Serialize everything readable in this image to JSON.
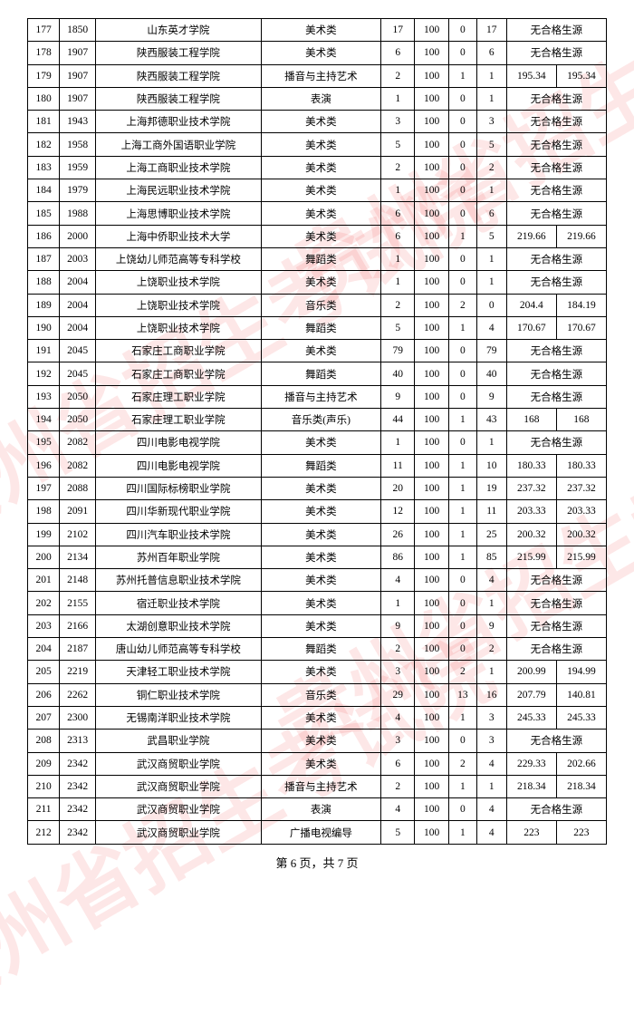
{
  "watermark_text": "贵州省招生考试院",
  "pager": "第 6 页，共 7 页",
  "columns": [
    "idx",
    "code",
    "school",
    "category",
    "n1",
    "n2",
    "n3",
    "n4",
    "s1",
    "s2"
  ],
  "no_source_text": "无合格生源",
  "rows": [
    {
      "idx": "177",
      "code": "1850",
      "school": "山东英才学院",
      "category": "美术类",
      "n1": "17",
      "n2": "100",
      "n3": "0",
      "n4": "17",
      "s1": "",
      "s2": "",
      "merged": true
    },
    {
      "idx": "178",
      "code": "1907",
      "school": "陕西服装工程学院",
      "category": "美术类",
      "n1": "6",
      "n2": "100",
      "n3": "0",
      "n4": "6",
      "s1": "",
      "s2": "",
      "merged": true
    },
    {
      "idx": "179",
      "code": "1907",
      "school": "陕西服装工程学院",
      "category": "播音与主持艺术",
      "n1": "2",
      "n2": "100",
      "n3": "1",
      "n4": "1",
      "s1": "195.34",
      "s2": "195.34",
      "merged": false
    },
    {
      "idx": "180",
      "code": "1907",
      "school": "陕西服装工程学院",
      "category": "表演",
      "n1": "1",
      "n2": "100",
      "n3": "0",
      "n4": "1",
      "s1": "",
      "s2": "",
      "merged": true
    },
    {
      "idx": "181",
      "code": "1943",
      "school": "上海邦德职业技术学院",
      "category": "美术类",
      "n1": "3",
      "n2": "100",
      "n3": "0",
      "n4": "3",
      "s1": "",
      "s2": "",
      "merged": true
    },
    {
      "idx": "182",
      "code": "1958",
      "school": "上海工商外国语职业学院",
      "category": "美术类",
      "n1": "5",
      "n2": "100",
      "n3": "0",
      "n4": "5",
      "s1": "",
      "s2": "",
      "merged": true
    },
    {
      "idx": "183",
      "code": "1959",
      "school": "上海工商职业技术学院",
      "category": "美术类",
      "n1": "2",
      "n2": "100",
      "n3": "0",
      "n4": "2",
      "s1": "",
      "s2": "",
      "merged": true
    },
    {
      "idx": "184",
      "code": "1979",
      "school": "上海民远职业技术学院",
      "category": "美术类",
      "n1": "1",
      "n2": "100",
      "n3": "0",
      "n4": "1",
      "s1": "",
      "s2": "",
      "merged": true
    },
    {
      "idx": "185",
      "code": "1988",
      "school": "上海思博职业技术学院",
      "category": "美术类",
      "n1": "6",
      "n2": "100",
      "n3": "0",
      "n4": "6",
      "s1": "",
      "s2": "",
      "merged": true
    },
    {
      "idx": "186",
      "code": "2000",
      "school": "上海中侨职业技术大学",
      "category": "美术类",
      "n1": "6",
      "n2": "100",
      "n3": "1",
      "n4": "5",
      "s1": "219.66",
      "s2": "219.66",
      "merged": false
    },
    {
      "idx": "187",
      "code": "2003",
      "school": "上饶幼儿师范高等专科学校",
      "category": "舞蹈类",
      "n1": "1",
      "n2": "100",
      "n3": "0",
      "n4": "1",
      "s1": "",
      "s2": "",
      "merged": true
    },
    {
      "idx": "188",
      "code": "2004",
      "school": "上饶职业技术学院",
      "category": "美术类",
      "n1": "1",
      "n2": "100",
      "n3": "0",
      "n4": "1",
      "s1": "",
      "s2": "",
      "merged": true
    },
    {
      "idx": "189",
      "code": "2004",
      "school": "上饶职业技术学院",
      "category": "音乐类",
      "n1": "2",
      "n2": "100",
      "n3": "2",
      "n4": "0",
      "s1": "204.4",
      "s2": "184.19",
      "merged": false
    },
    {
      "idx": "190",
      "code": "2004",
      "school": "上饶职业技术学院",
      "category": "舞蹈类",
      "n1": "5",
      "n2": "100",
      "n3": "1",
      "n4": "4",
      "s1": "170.67",
      "s2": "170.67",
      "merged": false
    },
    {
      "idx": "191",
      "code": "2045",
      "school": "石家庄工商职业学院",
      "category": "美术类",
      "n1": "79",
      "n2": "100",
      "n3": "0",
      "n4": "79",
      "s1": "",
      "s2": "",
      "merged": true
    },
    {
      "idx": "192",
      "code": "2045",
      "school": "石家庄工商职业学院",
      "category": "舞蹈类",
      "n1": "40",
      "n2": "100",
      "n3": "0",
      "n4": "40",
      "s1": "",
      "s2": "",
      "merged": true
    },
    {
      "idx": "193",
      "code": "2050",
      "school": "石家庄理工职业学院",
      "category": "播音与主持艺术",
      "n1": "9",
      "n2": "100",
      "n3": "0",
      "n4": "9",
      "s1": "",
      "s2": "",
      "merged": true
    },
    {
      "idx": "194",
      "code": "2050",
      "school": "石家庄理工职业学院",
      "category": "音乐类(声乐)",
      "n1": "44",
      "n2": "100",
      "n3": "1",
      "n4": "43",
      "s1": "168",
      "s2": "168",
      "merged": false
    },
    {
      "idx": "195",
      "code": "2082",
      "school": "四川电影电视学院",
      "category": "美术类",
      "n1": "1",
      "n2": "100",
      "n3": "0",
      "n4": "1",
      "s1": "",
      "s2": "",
      "merged": true
    },
    {
      "idx": "196",
      "code": "2082",
      "school": "四川电影电视学院",
      "category": "舞蹈类",
      "n1": "11",
      "n2": "100",
      "n3": "1",
      "n4": "10",
      "s1": "180.33",
      "s2": "180.33",
      "merged": false
    },
    {
      "idx": "197",
      "code": "2088",
      "school": "四川国际标榜职业学院",
      "category": "美术类",
      "n1": "20",
      "n2": "100",
      "n3": "1",
      "n4": "19",
      "s1": "237.32",
      "s2": "237.32",
      "merged": false
    },
    {
      "idx": "198",
      "code": "2091",
      "school": "四川华新现代职业学院",
      "category": "美术类",
      "n1": "12",
      "n2": "100",
      "n3": "1",
      "n4": "11",
      "s1": "203.33",
      "s2": "203.33",
      "merged": false
    },
    {
      "idx": "199",
      "code": "2102",
      "school": "四川汽车职业技术学院",
      "category": "美术类",
      "n1": "26",
      "n2": "100",
      "n3": "1",
      "n4": "25",
      "s1": "200.32",
      "s2": "200.32",
      "merged": false
    },
    {
      "idx": "200",
      "code": "2134",
      "school": "苏州百年职业学院",
      "category": "美术类",
      "n1": "86",
      "n2": "100",
      "n3": "1",
      "n4": "85",
      "s1": "215.99",
      "s2": "215.99",
      "merged": false
    },
    {
      "idx": "201",
      "code": "2148",
      "school": "苏州托普信息职业技术学院",
      "category": "美术类",
      "n1": "4",
      "n2": "100",
      "n3": "0",
      "n4": "4",
      "s1": "",
      "s2": "",
      "merged": true
    },
    {
      "idx": "202",
      "code": "2155",
      "school": "宿迁职业技术学院",
      "category": "美术类",
      "n1": "1",
      "n2": "100",
      "n3": "0",
      "n4": "1",
      "s1": "",
      "s2": "",
      "merged": true
    },
    {
      "idx": "203",
      "code": "2166",
      "school": "太湖创意职业技术学院",
      "category": "美术类",
      "n1": "9",
      "n2": "100",
      "n3": "0",
      "n4": "9",
      "s1": "",
      "s2": "",
      "merged": true
    },
    {
      "idx": "204",
      "code": "2187",
      "school": "唐山幼儿师范高等专科学校",
      "category": "舞蹈类",
      "n1": "2",
      "n2": "100",
      "n3": "0",
      "n4": "2",
      "s1": "",
      "s2": "",
      "merged": true
    },
    {
      "idx": "205",
      "code": "2219",
      "school": "天津轻工职业技术学院",
      "category": "美术类",
      "n1": "3",
      "n2": "100",
      "n3": "2",
      "n4": "1",
      "s1": "200.99",
      "s2": "194.99",
      "merged": false
    },
    {
      "idx": "206",
      "code": "2262",
      "school": "铜仁职业技术学院",
      "category": "音乐类",
      "n1": "29",
      "n2": "100",
      "n3": "13",
      "n4": "16",
      "s1": "207.79",
      "s2": "140.81",
      "merged": false
    },
    {
      "idx": "207",
      "code": "2300",
      "school": "无锡南洋职业技术学院",
      "category": "美术类",
      "n1": "4",
      "n2": "100",
      "n3": "1",
      "n4": "3",
      "s1": "245.33",
      "s2": "245.33",
      "merged": false
    },
    {
      "idx": "208",
      "code": "2313",
      "school": "武昌职业学院",
      "category": "美术类",
      "n1": "3",
      "n2": "100",
      "n3": "0",
      "n4": "3",
      "s1": "",
      "s2": "",
      "merged": true
    },
    {
      "idx": "209",
      "code": "2342",
      "school": "武汉商贸职业学院",
      "category": "美术类",
      "n1": "6",
      "n2": "100",
      "n3": "2",
      "n4": "4",
      "s1": "229.33",
      "s2": "202.66",
      "merged": false
    },
    {
      "idx": "210",
      "code": "2342",
      "school": "武汉商贸职业学院",
      "category": "播音与主持艺术",
      "n1": "2",
      "n2": "100",
      "n3": "1",
      "n4": "1",
      "s1": "218.34",
      "s2": "218.34",
      "merged": false
    },
    {
      "idx": "211",
      "code": "2342",
      "school": "武汉商贸职业学院",
      "category": "表演",
      "n1": "4",
      "n2": "100",
      "n3": "0",
      "n4": "4",
      "s1": "",
      "s2": "",
      "merged": true
    },
    {
      "idx": "212",
      "code": "2342",
      "school": "武汉商贸职业学院",
      "category": "广播电视编导",
      "n1": "5",
      "n2": "100",
      "n3": "1",
      "n4": "4",
      "s1": "223",
      "s2": "223",
      "merged": false
    }
  ]
}
